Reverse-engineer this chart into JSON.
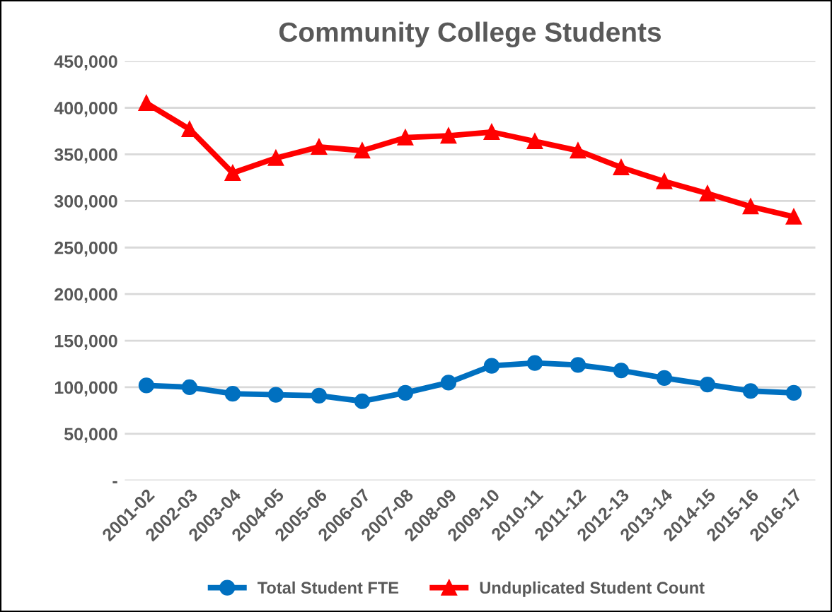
{
  "chart_data": {
    "type": "line",
    "title": "Community College Students",
    "categories": [
      "2001-02",
      "2002-03",
      "2003-04",
      "2004-05",
      "2005-06",
      "2006-07",
      "2007-08",
      "2008-09",
      "2009-10",
      "2010-11",
      "2011-12",
      "2012-13",
      "2013-14",
      "2014-15",
      "2015-16",
      "2016-17"
    ],
    "series": [
      {
        "name": "Total Student FTE",
        "color": "#0070c0",
        "marker": "circle",
        "values": [
          102000,
          100000,
          93000,
          92000,
          91000,
          85000,
          94000,
          105000,
          123000,
          126000,
          124000,
          118000,
          110000,
          103000,
          96000,
          94000
        ]
      },
      {
        "name": "Unduplicated Student Count",
        "color": "#ff0000",
        "marker": "triangle",
        "values": [
          405000,
          377000,
          330000,
          346000,
          358000,
          354000,
          368000,
          370000,
          374000,
          364000,
          354000,
          336000,
          321000,
          308000,
          294000,
          283000
        ]
      }
    ],
    "ylim": [
      0,
      450000
    ],
    "yticks": [
      {
        "value": 0,
        "label": "-"
      },
      {
        "value": 50000,
        "label": "50,000"
      },
      {
        "value": 100000,
        "label": "100,000"
      },
      {
        "value": 150000,
        "label": "150,000"
      },
      {
        "value": 200000,
        "label": "200,000"
      },
      {
        "value": 250000,
        "label": "250,000"
      },
      {
        "value": 300000,
        "label": "300,000"
      },
      {
        "value": 350000,
        "label": "350,000"
      },
      {
        "value": 400000,
        "label": "400,000"
      },
      {
        "value": 450000,
        "label": "450,000"
      }
    ],
    "grid": "y",
    "legend": "bottom"
  }
}
